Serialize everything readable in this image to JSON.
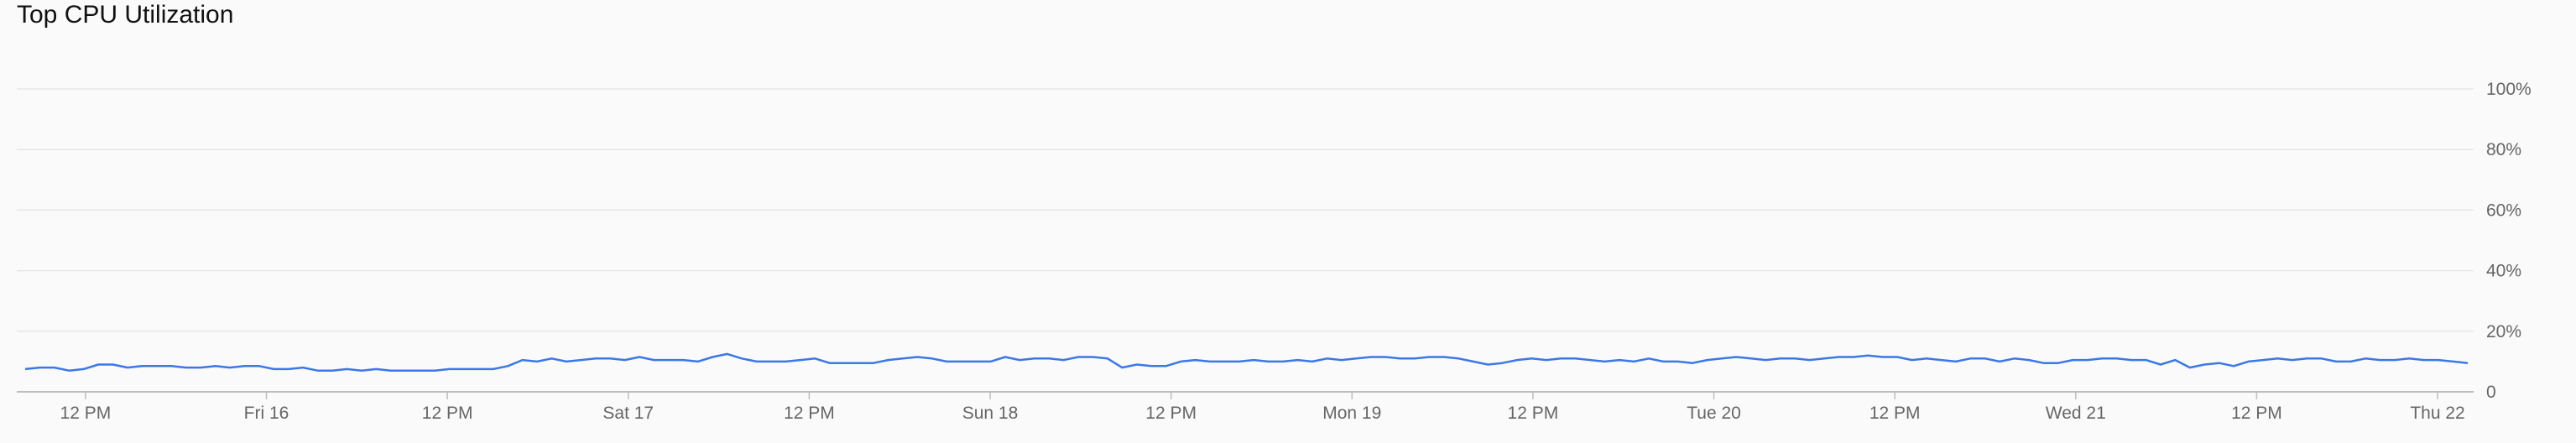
{
  "title": "Top CPU Utilization",
  "chart_data": {
    "type": "line",
    "title": "Top CPU Utilization",
    "xlabel": "",
    "ylabel": "",
    "ylim": [
      0,
      100
    ],
    "y_ticks": [
      "0",
      "20%",
      "40%",
      "60%",
      "80%",
      "100%"
    ],
    "y_tick_values": [
      0,
      20,
      40,
      60,
      80,
      100
    ],
    "grid": true,
    "x_ticks": [
      "12 PM",
      "Fri 16",
      "12 PM",
      "Sat 17",
      "12 PM",
      "Sun 18",
      "12 PM",
      "Mon 19",
      "12 PM",
      "Tue 20",
      "12 PM",
      "Wed 21",
      "12 PM",
      "Thu 22"
    ],
    "x_tick_hours": [
      12,
      24,
      36,
      48,
      60,
      72,
      84,
      96,
      108,
      120,
      132,
      144,
      156,
      168
    ],
    "x_start_hour": 8,
    "x_end_hour": 170,
    "series_color": "#3b78e7",
    "series": [
      {
        "values": [
          7.5,
          8,
          8,
          7,
          7.5,
          9,
          9,
          8,
          8.5,
          8.5,
          8.5,
          8,
          8,
          8.5,
          8,
          8.5,
          8.5,
          7.5,
          7.5,
          8,
          7,
          7,
          7.5,
          7,
          7.5,
          7,
          7,
          7,
          7,
          7.5,
          7.5,
          7.5,
          7.5,
          8.5,
          10.5,
          10,
          11,
          10,
          10.5,
          11,
          11,
          10.5,
          11.5,
          10.5,
          10.5,
          10.5,
          10,
          11.5,
          12.5,
          11,
          10,
          10,
          10,
          10.5,
          11,
          9.5,
          9.5,
          9.5,
          9.5,
          10.5,
          11,
          11.5,
          11,
          10,
          10,
          10,
          10,
          11.5,
          10.5,
          11,
          11,
          10.5,
          11.5,
          11.5,
          11,
          8,
          9,
          8.5,
          8.5,
          10,
          10.5,
          10,
          10,
          10,
          10.5,
          10,
          10,
          10.5,
          10,
          11,
          10.5,
          11,
          11.5,
          11.5,
          11,
          11,
          11.5,
          11.5,
          11,
          10,
          9,
          9.5,
          10.5,
          11,
          10.5,
          11,
          11,
          10.5,
          10,
          10.5,
          10,
          11,
          10,
          10,
          9.5,
          10.5,
          11,
          11.5,
          11,
          10.5,
          11,
          11,
          10.5,
          11,
          11.5,
          11.5,
          12,
          11.5,
          11.5,
          10.5,
          11,
          10.5,
          10,
          11,
          11,
          10,
          11,
          10.5,
          9.5,
          9.5,
          10.5,
          10.5,
          11,
          11,
          10.5,
          10.5,
          9,
          10.5,
          8,
          9,
          9.5,
          8.5,
          10,
          10.5,
          11,
          10.5,
          11,
          11,
          10,
          10,
          11,
          10.5,
          10.5,
          11,
          10.5,
          10.5,
          10,
          9.5
        ]
      }
    ]
  }
}
